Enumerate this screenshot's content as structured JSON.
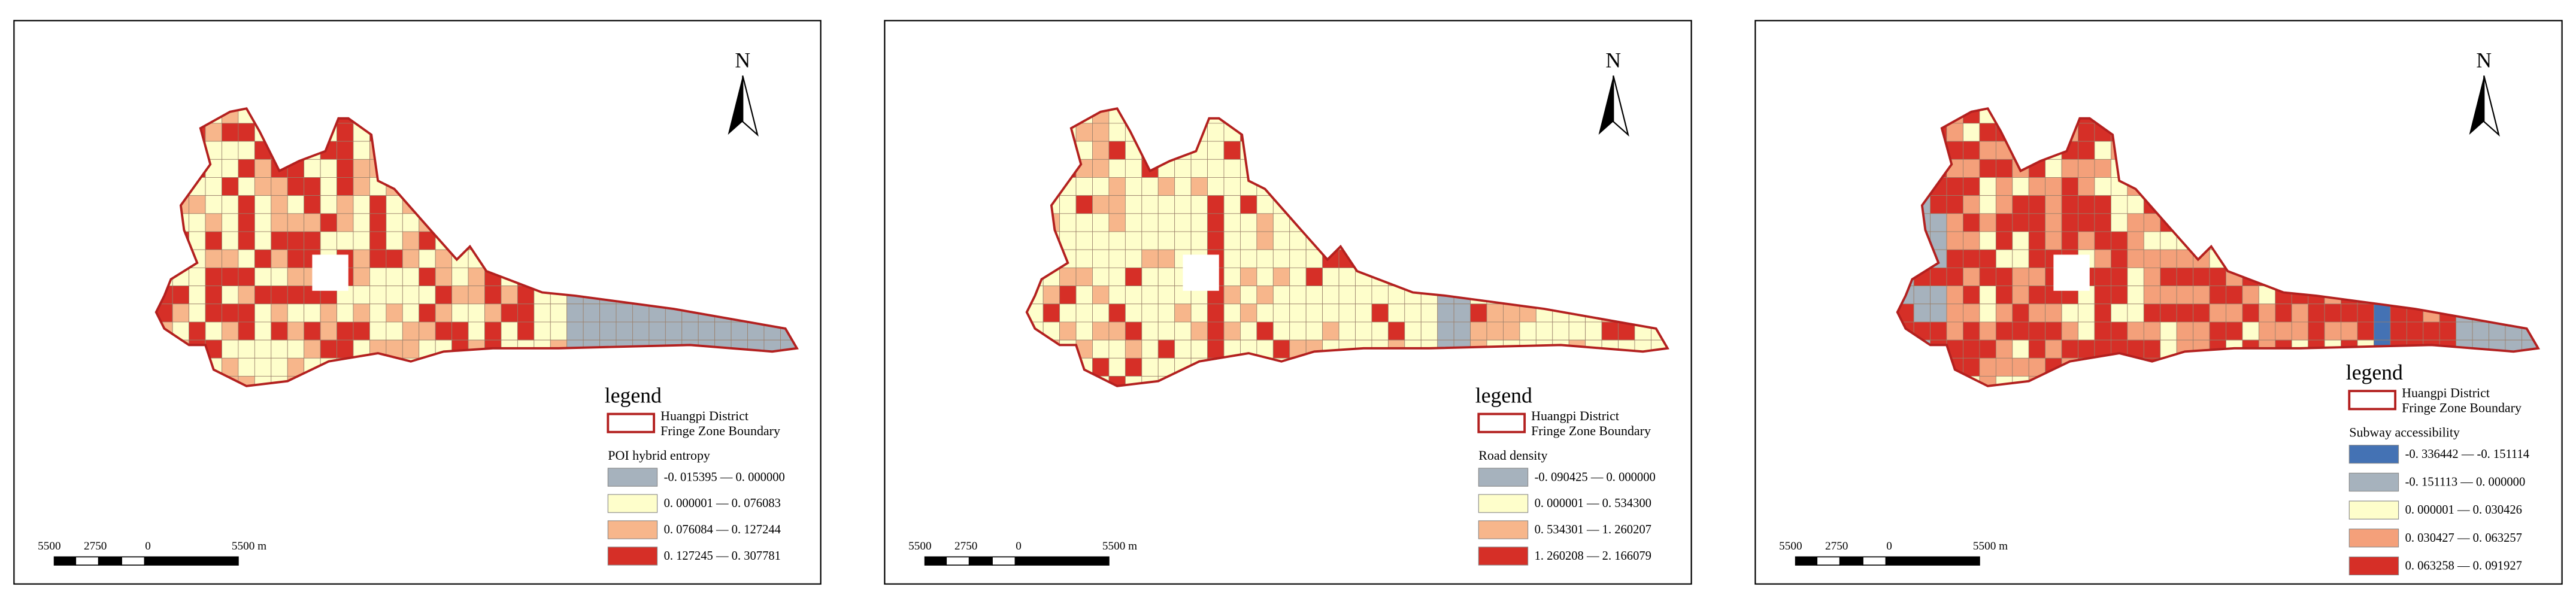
{
  "panels": [
    {
      "north": "N",
      "legend_title": "legend",
      "boundary_label": [
        "Huangpi District",
        "Fringe Zone Boundary"
      ],
      "variable": "POI hybrid entropy",
      "classes": [
        {
          "label": "-0. 015395 — 0. 000000",
          "color": "#a6b2bd"
        },
        {
          "label": "0. 000001 — 0. 076083",
          "color": "#fefecb"
        },
        {
          "label": "0. 076084 — 0. 127244",
          "color": "#f7b68b"
        },
        {
          "label": "0. 127245 — 0. 307781",
          "color": "#d62f27"
        }
      ],
      "scale_labels": [
        "5500",
        "2750",
        "0",
        "5500 m"
      ]
    },
    {
      "north": "N",
      "legend_title": "legend",
      "boundary_label": [
        "Huangpi District",
        "Fringe Zone Boundary"
      ],
      "variable": "Road density",
      "classes": [
        {
          "label": "-0. 090425 — 0. 000000",
          "color": "#a6b2bd"
        },
        {
          "label": "0. 000001 — 0. 534300",
          "color": "#fefecb"
        },
        {
          "label": "0. 534301 — 1. 260207",
          "color": "#f7b68b"
        },
        {
          "label": "1. 260208 — 2. 166079",
          "color": "#d62f27"
        }
      ],
      "scale_labels": [
        "5500",
        "2750",
        "0",
        "5500 m"
      ]
    },
    {
      "north": "N",
      "legend_title": "legend",
      "boundary_label": [
        "Huangpi District",
        "Fringe Zone Boundary"
      ],
      "variable": "Subway accessibility",
      "classes": [
        {
          "label": "-0. 336442 — -0. 151114",
          "color": "#4472b4"
        },
        {
          "label": "-0. 151113 — 0. 000000",
          "color": "#a6b2bd"
        },
        {
          "label": "0. 000001 — 0. 030426",
          "color": "#fefecb"
        },
        {
          "label": "0. 030427 — 0. 063257",
          "color": "#f4a07a"
        },
        {
          "label": "0. 063258 — 0. 091927",
          "color": "#d62f27"
        }
      ],
      "scale_labels": [
        "5500",
        "2750",
        "0",
        "5500 m"
      ]
    }
  ]
}
